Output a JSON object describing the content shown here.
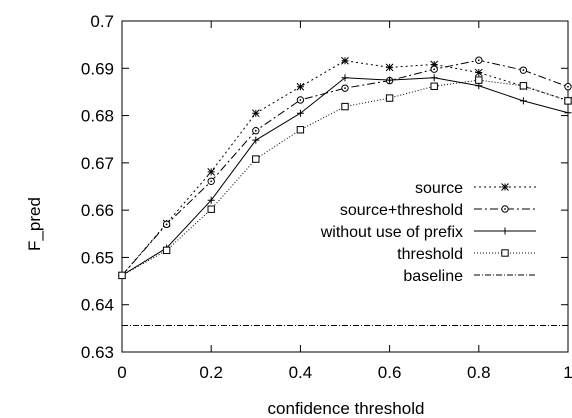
{
  "chart_data": {
    "type": "line",
    "xlabel": "confidence threshold",
    "ylabel": "F_pred",
    "xlim": [
      0,
      1
    ],
    "ylim": [
      0.63,
      0.7
    ],
    "x": [
      0,
      0.1,
      0.2,
      0.3,
      0.4,
      0.5,
      0.6,
      0.7,
      0.8,
      0.9,
      1.0
    ],
    "x_ticks": [
      0,
      0.2,
      0.4,
      0.6,
      0.8,
      1
    ],
    "x_tick_labels": [
      "0",
      "0.2",
      "0.4",
      "0.6",
      "0.8",
      "1"
    ],
    "y_ticks": [
      0.63,
      0.64,
      0.65,
      0.66,
      0.67,
      0.68,
      0.69,
      0.7
    ],
    "y_tick_labels": [
      "0.63",
      "0.64",
      "0.65",
      "0.66",
      "0.67",
      "0.68",
      "0.69",
      "0.7"
    ],
    "grid": false,
    "legend_position": "right",
    "series": [
      {
        "name": "source",
        "marker": "asterisk",
        "dash": "2,3",
        "values": [
          0.6462,
          0.6572,
          0.6681,
          0.6805,
          0.6861,
          0.6916,
          0.6902,
          0.6908,
          0.6891,
          0.6862,
          0.6832
        ]
      },
      {
        "name": "source+threshold",
        "marker": "circle",
        "dash": "8,3,2,3",
        "values": [
          0.6462,
          0.657,
          0.6661,
          0.6768,
          0.6833,
          0.6858,
          0.6874,
          0.6898,
          0.6917,
          0.6896,
          0.6861
        ]
      },
      {
        "name": "without use of prefix",
        "marker": "plus",
        "dash": "",
        "values": [
          0.6462,
          0.652,
          0.6621,
          0.6748,
          0.6805,
          0.688,
          0.6875,
          0.688,
          0.6863,
          0.6831,
          0.6806
        ]
      },
      {
        "name": "threshold",
        "marker": "square",
        "dash": "1,2",
        "values": [
          0.6462,
          0.6515,
          0.6602,
          0.6708,
          0.677,
          0.6819,
          0.6837,
          0.6862,
          0.6875,
          0.6863,
          0.6831
        ]
      },
      {
        "name": "baseline",
        "marker": "none",
        "dash": "6,2,1,2",
        "values": [
          0.6356,
          0.6356,
          0.6356,
          0.6356,
          0.6356,
          0.6356,
          0.6356,
          0.6356,
          0.6356,
          0.6356,
          0.6356
        ]
      }
    ]
  }
}
